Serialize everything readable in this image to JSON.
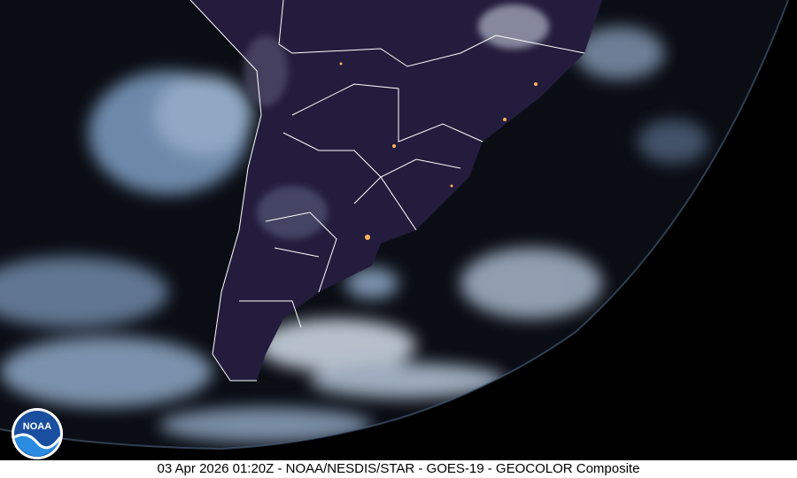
{
  "caption": "03 Apr 2026 01:20Z - NOAA/NESDIS/STAR - GOES-19 - GEOCOLOR Composite",
  "logo": {
    "text": "NOAA",
    "icon": "noaa-logo-icon"
  },
  "colors": {
    "space": "#000000",
    "land_night": "#231c3a",
    "cloud": "#c8d8ec",
    "ocean": "#0a0d14",
    "borders": "#ffffff"
  }
}
